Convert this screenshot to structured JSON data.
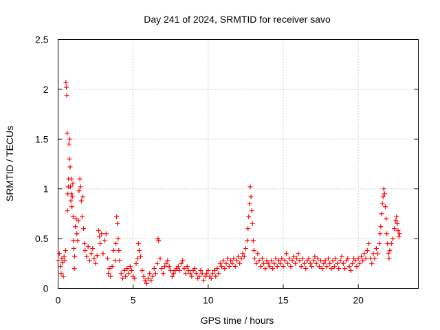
{
  "chart_data": {
    "type": "scatter",
    "title": "Day 241 of 2024, SRMTID for receiver savo",
    "xlabel": "GPS time / hours",
    "ylabel": "SRMTID / TECUs",
    "xlim": [
      0,
      24
    ],
    "ylim": [
      0,
      2.5
    ],
    "x_ticks": [
      0,
      5,
      10,
      15,
      20
    ],
    "x_tick_labels": [
      "0",
      "5",
      "10",
      "15",
      "20"
    ],
    "y_ticks": [
      0,
      0.5,
      1,
      1.5,
      2,
      2.5
    ],
    "y_tick_labels": [
      "0",
      "0.5",
      "1",
      "1.5",
      "2",
      "2.5"
    ],
    "grid": true,
    "marker": "plus",
    "series": [
      {
        "name": "SRMTID",
        "color": "#ff0000",
        "points": [
          [
            0.0,
            0.28
          ],
          [
            0.08,
            0.35
          ],
          [
            0.15,
            0.22
          ],
          [
            0.2,
            0.15
          ],
          [
            0.25,
            0.3
          ],
          [
            0.3,
            0.26
          ],
          [
            0.35,
            0.12
          ],
          [
            0.4,
            0.32
          ],
          [
            0.45,
            0.28
          ],
          [
            0.5,
            0.38
          ],
          [
            0.52,
            2.07
          ],
          [
            0.55,
            2.02
          ],
          [
            0.58,
            1.94
          ],
          [
            0.6,
            1.56
          ],
          [
            0.62,
            0.78
          ],
          [
            0.65,
            0.95
          ],
          [
            0.68,
            1.02
          ],
          [
            0.7,
            1.1
          ],
          [
            0.72,
            1.45
          ],
          [
            0.75,
            1.3
          ],
          [
            0.78,
            1.5
          ],
          [
            0.8,
            1.22
          ],
          [
            0.82,
            1.02
          ],
          [
            0.85,
            0.88
          ],
          [
            0.88,
            0.95
          ],
          [
            0.9,
            1.1
          ],
          [
            0.92,
            0.82
          ],
          [
            0.95,
            0.92
          ],
          [
            0.98,
            1.05
          ],
          [
            1.0,
            0.72
          ],
          [
            1.02,
            0.48
          ],
          [
            1.05,
            0.4
          ],
          [
            1.08,
            0.2
          ],
          [
            1.1,
            0.32
          ],
          [
            1.15,
            0.62
          ],
          [
            1.2,
            0.7
          ],
          [
            1.25,
            0.55
          ],
          [
            1.3,
            0.48
          ],
          [
            1.35,
            0.68
          ],
          [
            1.4,
            0.98
          ],
          [
            1.45,
            1.1
          ],
          [
            1.5,
            1.02
          ],
          [
            1.55,
            0.88
          ],
          [
            1.6,
            0.72
          ],
          [
            1.65,
            0.92
          ],
          [
            1.7,
            0.6
          ],
          [
            1.75,
            0.45
          ],
          [
            1.8,
            0.38
          ],
          [
            1.9,
            0.32
          ],
          [
            2.0,
            0.42
          ],
          [
            2.1,
            0.28
          ],
          [
            2.2,
            0.35
          ],
          [
            2.3,
            0.4
          ],
          [
            2.4,
            0.3
          ],
          [
            2.5,
            0.25
          ],
          [
            2.6,
            0.33
          ],
          [
            2.7,
            0.58
          ],
          [
            2.75,
            0.52
          ],
          [
            2.8,
            0.45
          ],
          [
            2.9,
            0.55
          ],
          [
            3.0,
            0.35
          ],
          [
            3.1,
            0.48
          ],
          [
            3.2,
            0.55
          ],
          [
            3.3,
            0.3
          ],
          [
            3.35,
            0.15
          ],
          [
            3.4,
            0.2
          ],
          [
            3.5,
            0.12
          ],
          [
            3.6,
            0.22
          ],
          [
            3.7,
            0.38
          ],
          [
            3.8,
            0.28
          ],
          [
            3.85,
            0.45
          ],
          [
            3.9,
            0.72
          ],
          [
            3.95,
            0.65
          ],
          [
            4.0,
            0.5
          ],
          [
            4.05,
            0.38
          ],
          [
            4.1,
            0.28
          ],
          [
            4.2,
            0.15
          ],
          [
            4.3,
            0.1
          ],
          [
            4.4,
            0.18
          ],
          [
            4.5,
            0.12
          ],
          [
            4.6,
            0.2
          ],
          [
            4.7,
            0.15
          ],
          [
            4.8,
            0.22
          ],
          [
            4.9,
            0.18
          ],
          [
            5.0,
            0.12
          ],
          [
            5.1,
            0.1
          ],
          [
            5.2,
            0.25
          ],
          [
            5.3,
            0.3
          ],
          [
            5.35,
            0.45
          ],
          [
            5.4,
            0.38
          ],
          [
            5.5,
            0.32
          ],
          [
            5.6,
            0.18
          ],
          [
            5.7,
            0.12
          ],
          [
            5.8,
            0.08
          ],
          [
            5.9,
            0.05
          ],
          [
            6.0,
            0.1
          ],
          [
            6.1,
            0.15
          ],
          [
            6.2,
            0.08
          ],
          [
            6.3,
            0.12
          ],
          [
            6.4,
            0.2
          ],
          [
            6.5,
            0.15
          ],
          [
            6.6,
            0.25
          ],
          [
            6.65,
            0.5
          ],
          [
            6.7,
            0.48
          ],
          [
            6.8,
            0.3
          ],
          [
            6.9,
            0.2
          ],
          [
            7.0,
            0.15
          ],
          [
            7.1,
            0.22
          ],
          [
            7.2,
            0.25
          ],
          [
            7.3,
            0.28
          ],
          [
            7.4,
            0.22
          ],
          [
            7.5,
            0.18
          ],
          [
            7.6,
            0.12
          ],
          [
            7.7,
            0.15
          ],
          [
            7.8,
            0.18
          ],
          [
            7.9,
            0.2
          ],
          [
            8.0,
            0.22
          ],
          [
            8.1,
            0.18
          ],
          [
            8.2,
            0.25
          ],
          [
            8.3,
            0.28
          ],
          [
            8.4,
            0.2
          ],
          [
            8.5,
            0.15
          ],
          [
            8.6,
            0.22
          ],
          [
            8.7,
            0.18
          ],
          [
            8.8,
            0.15
          ],
          [
            8.9,
            0.12
          ],
          [
            9.0,
            0.18
          ],
          [
            9.1,
            0.2
          ],
          [
            9.2,
            0.15
          ],
          [
            9.3,
            0.1
          ],
          [
            9.4,
            0.12
          ],
          [
            9.5,
            0.18
          ],
          [
            9.6,
            0.15
          ],
          [
            9.7,
            0.08
          ],
          [
            9.8,
            0.12
          ],
          [
            9.9,
            0.15
          ],
          [
            10.0,
            0.18
          ],
          [
            10.1,
            0.12
          ],
          [
            10.2,
            0.1
          ],
          [
            10.3,
            0.15
          ],
          [
            10.4,
            0.18
          ],
          [
            10.5,
            0.12
          ],
          [
            10.6,
            0.2
          ],
          [
            10.7,
            0.15
          ],
          [
            10.8,
            0.25
          ],
          [
            10.9,
            0.22
          ],
          [
            11.0,
            0.28
          ],
          [
            11.1,
            0.2
          ],
          [
            11.2,
            0.25
          ],
          [
            11.3,
            0.3
          ],
          [
            11.4,
            0.22
          ],
          [
            11.5,
            0.28
          ],
          [
            11.6,
            0.25
          ],
          [
            11.7,
            0.3
          ],
          [
            11.8,
            0.22
          ],
          [
            11.9,
            0.28
          ],
          [
            12.0,
            0.32
          ],
          [
            12.1,
            0.25
          ],
          [
            12.2,
            0.3
          ],
          [
            12.3,
            0.35
          ],
          [
            12.4,
            0.32
          ],
          [
            12.5,
            0.4
          ],
          [
            12.6,
            0.48
          ],
          [
            12.65,
            0.6
          ],
          [
            12.7,
            0.72
          ],
          [
            12.75,
            0.85
          ],
          [
            12.8,
            1.02
          ],
          [
            12.85,
            0.92
          ],
          [
            12.9,
            0.78
          ],
          [
            12.95,
            0.65
          ],
          [
            13.0,
            0.48
          ],
          [
            13.05,
            0.38
          ],
          [
            13.1,
            0.3
          ],
          [
            13.2,
            0.25
          ],
          [
            13.3,
            0.35
          ],
          [
            13.4,
            0.28
          ],
          [
            13.5,
            0.22
          ],
          [
            13.6,
            0.3
          ],
          [
            13.7,
            0.25
          ],
          [
            13.8,
            0.2
          ],
          [
            13.9,
            0.28
          ],
          [
            14.0,
            0.25
          ],
          [
            14.1,
            0.22
          ],
          [
            14.2,
            0.28
          ],
          [
            14.3,
            0.2
          ],
          [
            14.4,
            0.25
          ],
          [
            14.5,
            0.3
          ],
          [
            14.6,
            0.22
          ],
          [
            14.7,
            0.28
          ],
          [
            14.8,
            0.25
          ],
          [
            14.9,
            0.3
          ],
          [
            15.0,
            0.22
          ],
          [
            15.1,
            0.28
          ],
          [
            15.2,
            0.35
          ],
          [
            15.3,
            0.25
          ],
          [
            15.4,
            0.3
          ],
          [
            15.5,
            0.22
          ],
          [
            15.6,
            0.28
          ],
          [
            15.7,
            0.32
          ],
          [
            15.8,
            0.25
          ],
          [
            15.9,
            0.3
          ],
          [
            16.0,
            0.35
          ],
          [
            16.1,
            0.28
          ],
          [
            16.2,
            0.22
          ],
          [
            16.3,
            0.3
          ],
          [
            16.4,
            0.25
          ],
          [
            16.5,
            0.2
          ],
          [
            16.6,
            0.28
          ],
          [
            16.7,
            0.3
          ],
          [
            16.8,
            0.25
          ],
          [
            16.9,
            0.22
          ],
          [
            17.0,
            0.28
          ],
          [
            17.1,
            0.32
          ],
          [
            17.2,
            0.25
          ],
          [
            17.3,
            0.3
          ],
          [
            17.4,
            0.22
          ],
          [
            17.5,
            0.28
          ],
          [
            17.6,
            0.2
          ],
          [
            17.7,
            0.25
          ],
          [
            17.8,
            0.28
          ],
          [
            17.9,
            0.22
          ],
          [
            18.0,
            0.3
          ],
          [
            18.1,
            0.25
          ],
          [
            18.2,
            0.2
          ],
          [
            18.3,
            0.28
          ],
          [
            18.4,
            0.22
          ],
          [
            18.5,
            0.3
          ],
          [
            18.6,
            0.25
          ],
          [
            18.7,
            0.2
          ],
          [
            18.8,
            0.28
          ],
          [
            18.9,
            0.32
          ],
          [
            19.0,
            0.25
          ],
          [
            19.1,
            0.2
          ],
          [
            19.2,
            0.28
          ],
          [
            19.3,
            0.3
          ],
          [
            19.4,
            0.22
          ],
          [
            19.5,
            0.18
          ],
          [
            19.6,
            0.25
          ],
          [
            19.7,
            0.3
          ],
          [
            19.8,
            0.28
          ],
          [
            19.9,
            0.22
          ],
          [
            20.0,
            0.3
          ],
          [
            20.1,
            0.25
          ],
          [
            20.2,
            0.32
          ],
          [
            20.3,
            0.28
          ],
          [
            20.4,
            0.35
          ],
          [
            20.5,
            0.3
          ],
          [
            20.6,
            0.38
          ],
          [
            20.7,
            0.45
          ],
          [
            20.8,
            0.3
          ],
          [
            20.9,
            0.25
          ],
          [
            21.0,
            0.35
          ],
          [
            21.1,
            0.3
          ],
          [
            21.2,
            0.4
          ],
          [
            21.3,
            0.35
          ],
          [
            21.4,
            0.45
          ],
          [
            21.45,
            0.55
          ],
          [
            21.5,
            0.62
          ],
          [
            21.55,
            0.75
          ],
          [
            21.6,
            0.85
          ],
          [
            21.65,
            0.92
          ],
          [
            21.7,
            1.0
          ],
          [
            21.75,
            0.95
          ],
          [
            21.8,
            0.82
          ],
          [
            21.85,
            0.7
          ],
          [
            21.9,
            0.55
          ],
          [
            21.95,
            0.45
          ],
          [
            22.0,
            0.35
          ],
          [
            22.05,
            0.3
          ],
          [
            22.1,
            0.38
          ],
          [
            22.2,
            0.45
          ],
          [
            22.3,
            0.5
          ],
          [
            22.4,
            0.6
          ],
          [
            22.5,
            0.68
          ],
          [
            22.55,
            0.72
          ],
          [
            22.6,
            0.65
          ],
          [
            22.65,
            0.58
          ],
          [
            22.7,
            0.52
          ],
          [
            22.75,
            0.55
          ]
        ]
      }
    ]
  }
}
